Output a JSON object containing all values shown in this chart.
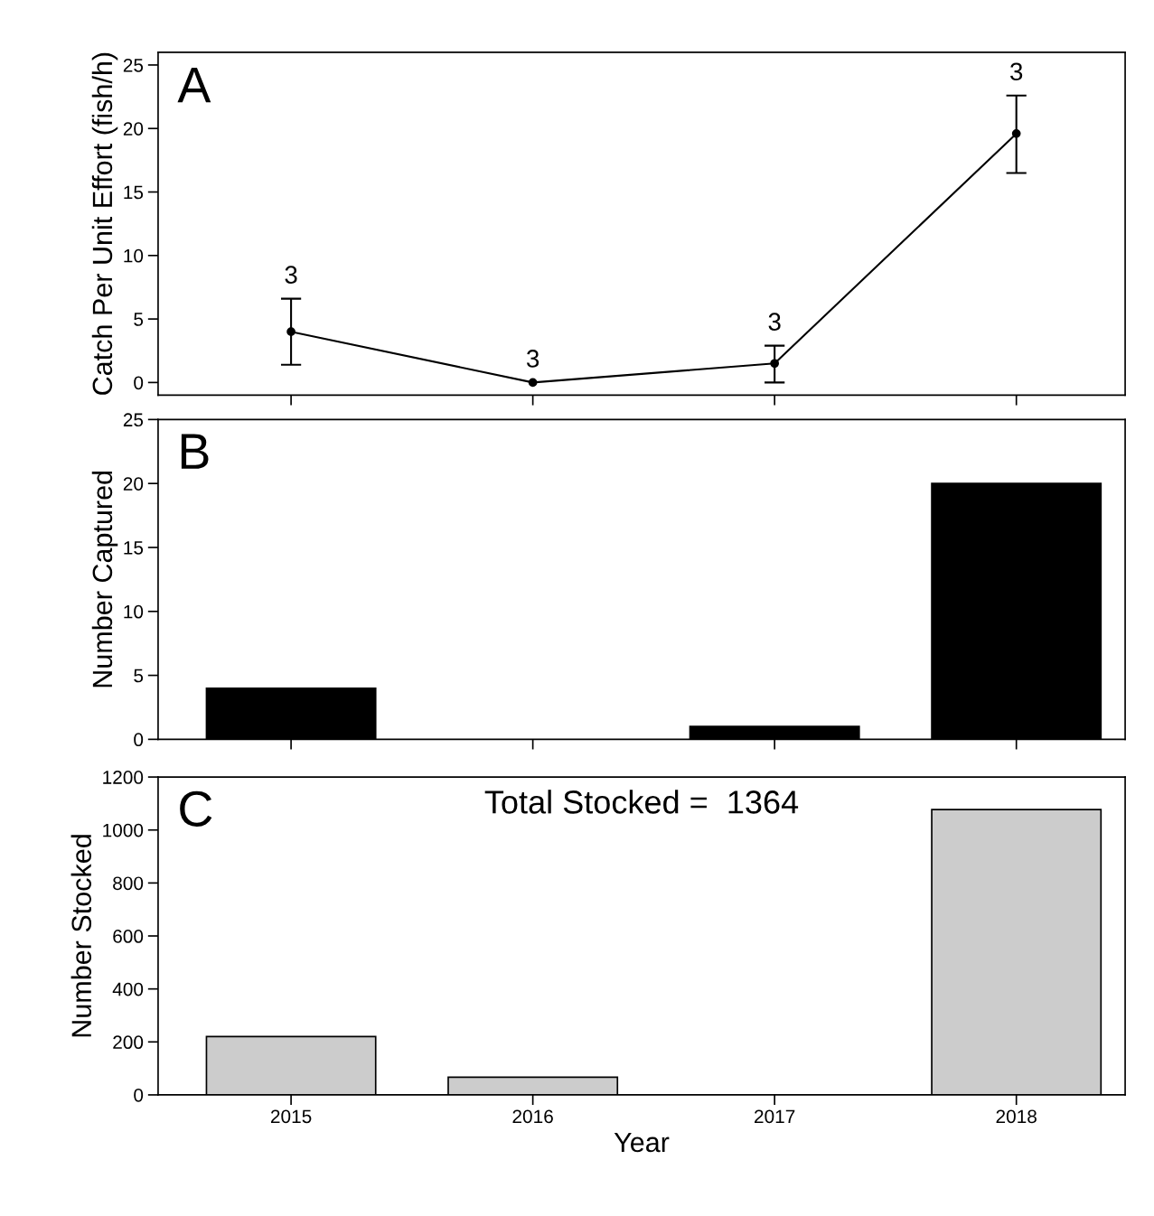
{
  "chart_data": [
    {
      "type": "line",
      "ylabel": "Catch Per Unit Effort (fish/h)",
      "categories": [
        "2015",
        "2016",
        "2017",
        "2018"
      ],
      "series": [
        {
          "color": "#000000",
          "values": [
            4.0,
            0.0,
            1.5,
            19.6
          ],
          "errors": [
            [
              1.4,
              6.6
            ],
            null,
            [
              0.0,
              2.9
            ],
            [
              16.5,
              22.6
            ]
          ]
        }
      ],
      "marker": "circle",
      "line_style": "solid",
      "ylim": [
        -1,
        26
      ],
      "yticks": [
        0,
        5,
        10,
        15,
        20,
        25
      ],
      "tick_labels": "y",
      "grid": false,
      "legend": false,
      "annotations": [
        "A",
        {
          "text": "3",
          "x": "2015",
          "y": 6.6
        },
        {
          "text": "3",
          "x": "2016",
          "y": 0.0
        },
        {
          "text": "3",
          "x": "2017",
          "y": 2.9
        },
        {
          "text": "3",
          "x": "2018",
          "y": 22.6
        }
      ]
    },
    {
      "type": "bar",
      "ylabel": "Number Captured",
      "categories": [
        "2015",
        "2016",
        "2017",
        "2018"
      ],
      "series": [
        {
          "color": "#000000",
          "values": [
            4,
            0,
            1,
            20
          ]
        }
      ],
      "ylim": [
        0,
        25
      ],
      "yticks": [
        0,
        5,
        10,
        15,
        20,
        25
      ],
      "tick_labels": "y",
      "grid": false,
      "legend": false,
      "annotations": [
        "B"
      ]
    },
    {
      "type": "bar",
      "ylabel": "Number Stocked",
      "xlabel": "Year",
      "categories": [
        "2015",
        "2016",
        "2017",
        "2018"
      ],
      "series": [
        {
          "color": "#cccccc",
          "values": [
            220,
            67,
            0,
            1077
          ]
        }
      ],
      "ylim": [
        0,
        1200
      ],
      "yticks": [
        0,
        200,
        400,
        600,
        800,
        1000,
        1200
      ],
      "grid": false,
      "legend": false,
      "annotations": [
        "C",
        "Total Stocked =  1364"
      ]
    }
  ]
}
